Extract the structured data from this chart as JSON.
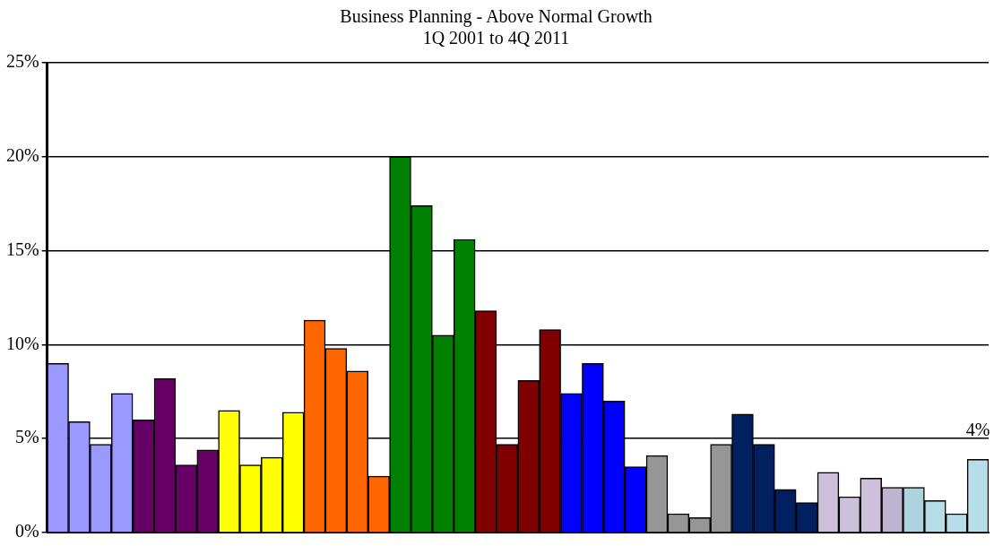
{
  "chart_data": {
    "type": "bar",
    "title": "Business Planning - Above Normal Growth",
    "subtitle": "1Q 2001 to 4Q 2011",
    "categories": [
      null,
      null,
      null,
      null,
      null,
      null,
      null,
      null,
      null,
      null,
      null,
      null,
      null,
      null,
      null,
      null,
      null,
      null,
      null,
      null,
      null,
      null,
      null,
      null,
      null,
      null,
      null,
      null,
      null,
      null,
      null,
      null,
      null,
      null,
      null,
      null,
      null,
      null,
      null,
      null,
      null,
      null,
      null,
      null
    ],
    "values": [
      9.0,
      5.9,
      4.7,
      7.4,
      6.0,
      8.2,
      3.6,
      4.4,
      6.5,
      3.6,
      4.0,
      6.4,
      11.3,
      9.8,
      8.6,
      3.0,
      20.0,
      17.4,
      10.5,
      15.6,
      11.8,
      4.7,
      8.1,
      10.8,
      7.4,
      9.0,
      7.0,
      3.5,
      4.1,
      1.0,
      0.8,
      4.7,
      6.3,
      4.7,
      2.3,
      1.6,
      3.2,
      1.9,
      2.9,
      2.4,
      2.4,
      1.7,
      1.0,
      3.9
    ],
    "colors": [
      "#9999ff",
      "#9999ff",
      "#9999ff",
      "#9999ff",
      "#660066",
      "#660066",
      "#660066",
      "#660066",
      "#ffff00",
      "#ffff00",
      "#ffff00",
      "#ffff00",
      "#ff6600",
      "#ff6600",
      "#ff6600",
      "#ff6600",
      "#008000",
      "#008000",
      "#008000",
      "#008000",
      "#800000",
      "#800000",
      "#800000",
      "#800000",
      "#0000ff",
      "#0000ff",
      "#0000ff",
      "#0000ff",
      "#969696",
      "#969696",
      "#969696",
      "#969696",
      "#002060",
      "#002060",
      "#002060",
      "#002060",
      "#ccc0da",
      "#ccc0da",
      "#ccc0da",
      "#bfb3cf",
      "#add3de",
      "#b7dee8",
      "#b7dee8",
      "#b7dee8"
    ],
    "value_labels": [
      null,
      null,
      null,
      null,
      null,
      null,
      null,
      null,
      null,
      null,
      null,
      null,
      null,
      null,
      null,
      null,
      null,
      null,
      null,
      null,
      null,
      null,
      null,
      null,
      null,
      null,
      null,
      null,
      null,
      null,
      null,
      null,
      null,
      null,
      null,
      null,
      null,
      null,
      null,
      null,
      null,
      null,
      null,
      "4%"
    ],
    "ylim": [
      0,
      25
    ],
    "yticks": [
      {
        "value": 0,
        "label": "0%"
      },
      {
        "value": 5,
        "label": "5%"
      },
      {
        "value": 10,
        "label": "10%"
      },
      {
        "value": 15,
        "label": "15%"
      },
      {
        "value": 20,
        "label": "20%"
      },
      {
        "value": 25,
        "label": "25%"
      }
    ],
    "grid": "y",
    "legend": false
  }
}
